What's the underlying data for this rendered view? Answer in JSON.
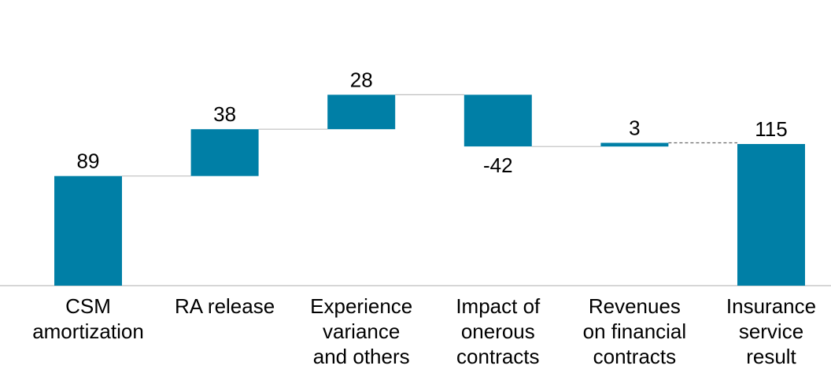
{
  "chart_data": {
    "type": "waterfall",
    "bar_color": "#007FA6",
    "categories": [
      [
        "CSM",
        "amortization"
      ],
      [
        "RA release"
      ],
      [
        "Experience",
        "variance",
        "and others"
      ],
      [
        "Impact of",
        "onerous",
        "contracts"
      ],
      [
        "Revenues",
        "on financial",
        "contracts"
      ],
      [
        "Insurance",
        "service",
        "result"
      ]
    ],
    "values": [
      89,
      38,
      28,
      -42,
      3,
      115
    ],
    "labels": [
      "89",
      "38",
      "28",
      "-42",
      "3",
      "115"
    ],
    "total_index": 5,
    "ylim": [
      0,
      135
    ]
  }
}
